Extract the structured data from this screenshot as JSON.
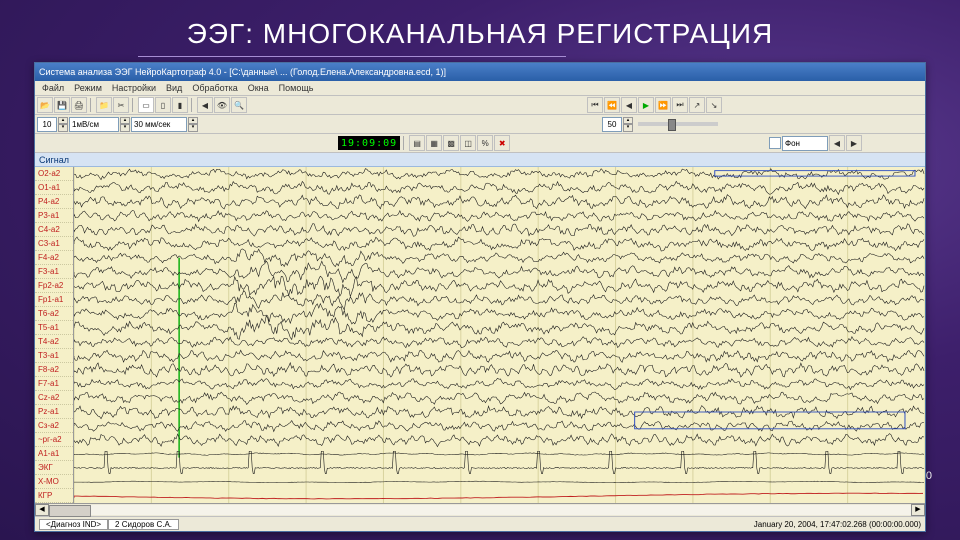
{
  "slide": {
    "title": "ЭЭГ: МНОГОКАНАЛЬНАЯ РЕГИСТРАЦИЯ",
    "page_number": "70",
    "bg_gradient": [
      "#5a3a8f",
      "#3d1f6b",
      "#2a1550"
    ]
  },
  "window": {
    "title": "Система анализа ЭЭГ НейроКартограф 4.0 - [С:\\данные\\ ... (Голод.Елена.Александровна.ecd, 1)]",
    "menu": [
      "Файл",
      "Режим",
      "Настройки",
      "Вид",
      "Обработка",
      "Окна",
      "Помощь"
    ],
    "toolbar1_icons": [
      "open",
      "save",
      "print",
      "|",
      "folder",
      "cut",
      "|",
      "sel1",
      "sel2",
      "sel3",
      "|",
      "arrow-l",
      "eye",
      "zoom"
    ],
    "toolbar_nav": [
      "⏮",
      "◀◀",
      "◀",
      "▶",
      "▶▶",
      "⏭",
      "↗",
      "↘"
    ],
    "amplitude_value": "10",
    "amplitude_unit": "1мВ/см",
    "timebase_value": "30 мм/сек",
    "slider_value": "50",
    "time_display": "19:09:09",
    "filter_label": "Фон",
    "panel_label": "Сигнал",
    "channels": [
      "O2-a2",
      "O1-a1",
      "P4-a2",
      "P3-a1",
      "C4-a2",
      "C3-a1",
      "F4-a2",
      "F3-a1",
      "Fp2-a2",
      "Fp1-a1",
      "T6-a2",
      "T5-a1",
      "T4-a2",
      "T3-a1",
      "F8-a2",
      "F7-a1",
      "Cz-a2",
      "Pz-a1",
      "Сз-a2",
      "~рг-a2",
      "A1-a1",
      "ЭКГ",
      "Х-МО",
      "КГР"
    ],
    "grid_color": "#d8d39f",
    "paper_color": "#f5f0c8",
    "wave_color": "#1a1a1a",
    "ecg_color": "#1a1a1a",
    "kgr_color": "#c02020",
    "marker_color": "#10b010",
    "selection_color": "#3050c0",
    "status_tabs": [
      "<Диагноз IND>",
      "2 Сидоров С.А."
    ],
    "status_right": "January 20, 2004, 17:47:02.268 (00:00:00.000)",
    "grid_divisions": 11
  }
}
